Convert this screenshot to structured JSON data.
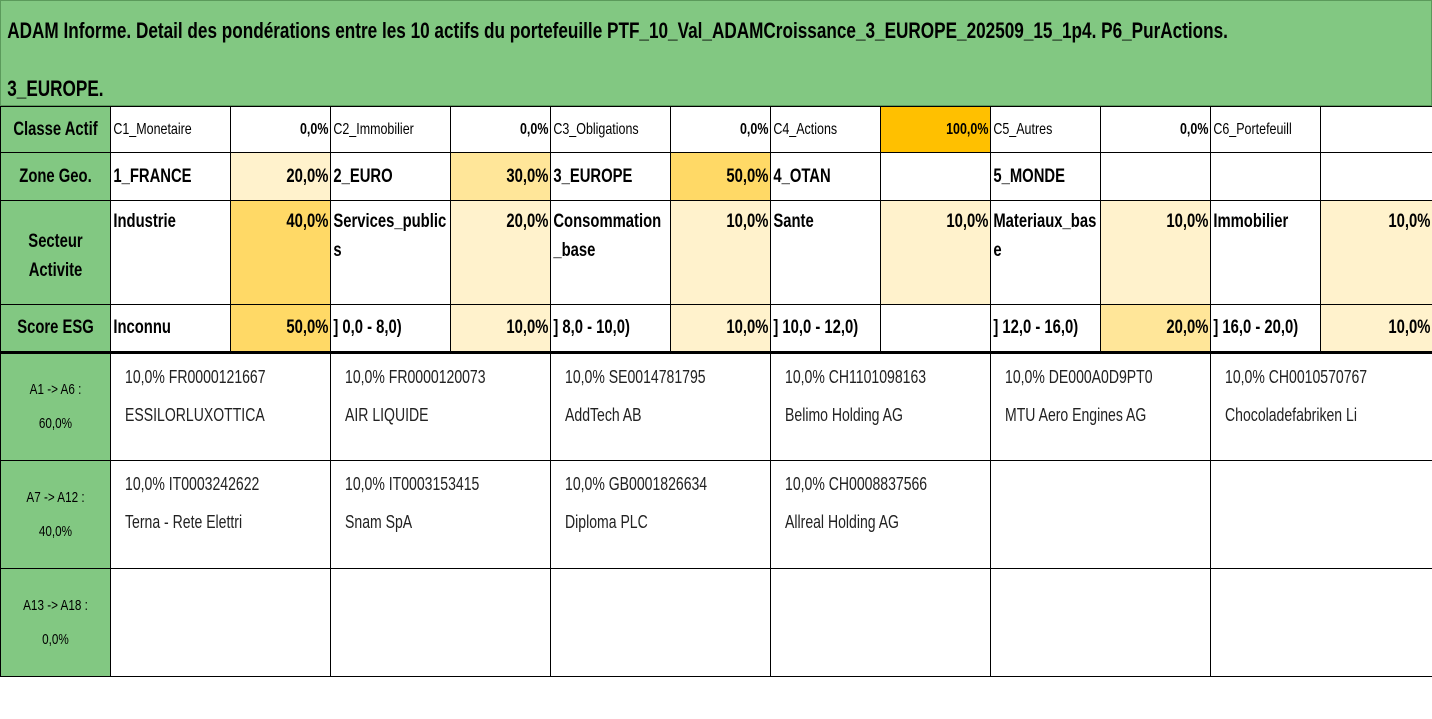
{
  "title": {
    "line1": "ADAM Informe. Detail des pondérations entre les 10 actifs du portefeuille PTF_10_Val_ADAMCroissance_3_EUROPE_202509_15_1p4. P6_PurActions.",
    "line2": "3_EUROPE."
  },
  "classe_actif": {
    "label": "Classe Actif",
    "items": [
      {
        "name": "C1_Monetaire",
        "value": "0,0%"
      },
      {
        "name": "C2_Immobilier",
        "value": "0,0%"
      },
      {
        "name": "C3_Obligations",
        "value": "0,0%"
      },
      {
        "name": "C4_Actions",
        "value": "100,0%"
      },
      {
        "name": "C5_Autres",
        "value": "0,0%"
      },
      {
        "name": "C6_Portefeuill",
        "value": ""
      }
    ]
  },
  "zone_geo": {
    "label": "Zone Geo.",
    "items": [
      {
        "name": "1_FRANCE",
        "value": "20,0%"
      },
      {
        "name": "2_EURO",
        "value": "30,0%"
      },
      {
        "name": "3_EUROPE",
        "value": "50,0%"
      },
      {
        "name": "4_OTAN",
        "value": ""
      },
      {
        "name": "5_MONDE",
        "value": ""
      },
      {
        "name": "",
        "value": ""
      }
    ]
  },
  "secteur": {
    "label": "Secteur Activite",
    "items": [
      {
        "name": "Industrie",
        "value": "40,0%"
      },
      {
        "name": "Services_publics",
        "value": "20,0%"
      },
      {
        "name": "Consommation_base",
        "value": "10,0%"
      },
      {
        "name": "Sante",
        "value": "10,0%"
      },
      {
        "name": "Materiaux_base",
        "value": "10,0%"
      },
      {
        "name": "Immobilier",
        "value": "10,0%"
      }
    ]
  },
  "score_esg": {
    "label": "Score ESG",
    "items": [
      {
        "name": "Inconnu",
        "value": "50,0%"
      },
      {
        "name": "] 0,0 - 8,0)",
        "value": "10,0%"
      },
      {
        "name": "] 8,0 - 10,0)",
        "value": "10,0%"
      },
      {
        "name": "] 10,0 - 12,0)",
        "value": ""
      },
      {
        "name": "] 12,0 - 16,0)",
        "value": "20,0%"
      },
      {
        "name": "] 16,0 - 20,0)",
        "value": "10,0%"
      }
    ]
  },
  "groups": [
    {
      "label": "A1 -> A6 :",
      "total": "60,0%",
      "assets": [
        {
          "line1": "10,0% FR0000121667",
          "line2": "ESSILORLUXOTTICA"
        },
        {
          "line1": "10,0% FR0000120073",
          "line2": "AIR LIQUIDE"
        },
        {
          "line1": "10,0% SE0014781795",
          "line2": "AddTech AB"
        },
        {
          "line1": "10,0% CH1101098163",
          "line2": "Belimo Holding AG"
        },
        {
          "line1": "10,0% DE000A0D9PT0",
          "line2": "MTU Aero Engines AG"
        },
        {
          "line1": "10,0% CH0010570767",
          "line2": "Chocoladefabriken Li"
        }
      ]
    },
    {
      "label": "A7 -> A12 :",
      "total": "40,0%",
      "assets": [
        {
          "line1": "10,0% IT0003242622",
          "line2": "Terna - Rete Elettri"
        },
        {
          "line1": "10,0% IT0003153415",
          "line2": "Snam SpA"
        },
        {
          "line1": "10,0% GB0001826634",
          "line2": "Diploma PLC"
        },
        {
          "line1": "10,0% CH0008837566",
          "line2": "Allreal Holding AG"
        },
        {
          "line1": "",
          "line2": ""
        },
        {
          "line1": "",
          "line2": ""
        }
      ]
    },
    {
      "label": "A13 -> A18 :",
      "total": "0,0%",
      "assets": [
        {
          "line1": "",
          "line2": ""
        },
        {
          "line1": "",
          "line2": ""
        },
        {
          "line1": "",
          "line2": ""
        },
        {
          "line1": "",
          "line2": ""
        },
        {
          "line1": "",
          "line2": ""
        },
        {
          "line1": "",
          "line2": ""
        }
      ]
    }
  ],
  "colors": {
    "header_green": "#82c882",
    "pale_yellow": "#fff2cc",
    "mid_yellow": "#ffe699",
    "strong_yellow": "#ffd966",
    "orange": "#ffc000"
  }
}
